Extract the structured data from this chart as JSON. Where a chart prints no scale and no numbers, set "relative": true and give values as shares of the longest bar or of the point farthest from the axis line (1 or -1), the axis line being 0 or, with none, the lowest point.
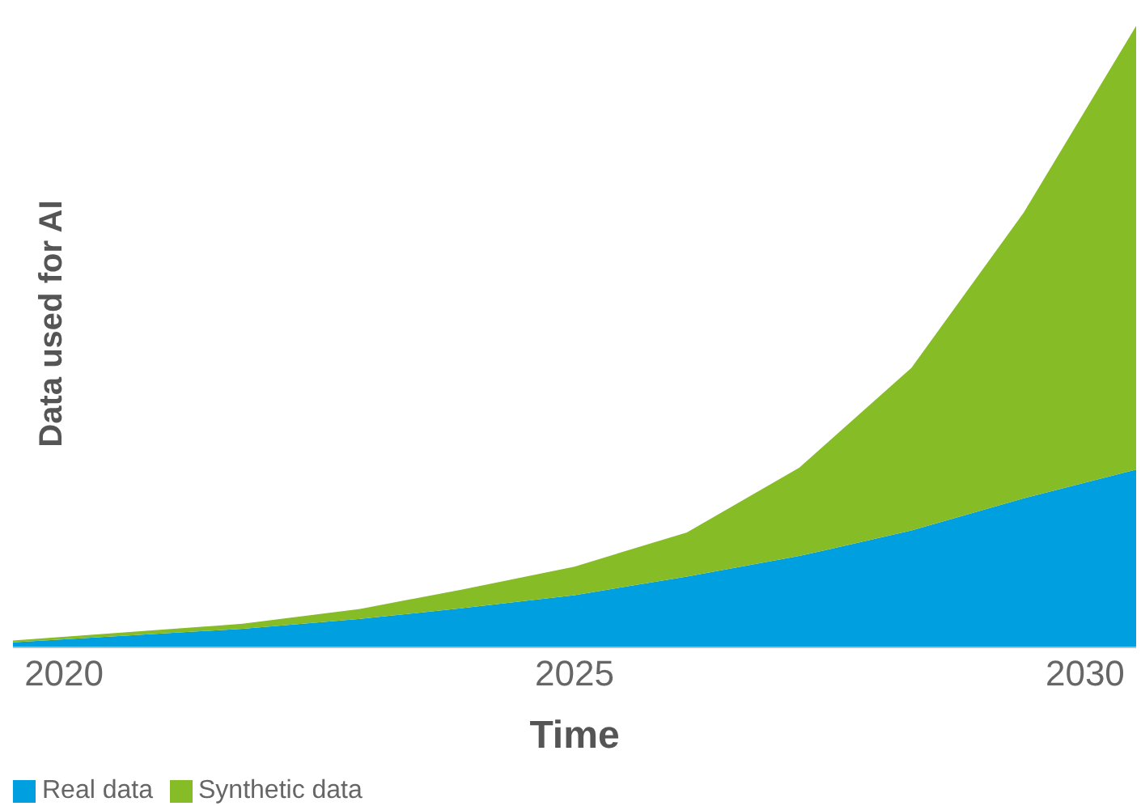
{
  "chart_data": {
    "type": "area",
    "stacked": true,
    "relative": true,
    "xlabel": "Time",
    "ylabel": "Data used for AI",
    "x": [
      2019.5,
      2021.75,
      2022.9,
      2023.9,
      2025,
      2026.1,
      2027.2,
      2028.3,
      2029.4,
      2030.5
    ],
    "xlim": [
      2019.5,
      2030.5
    ],
    "xticks": [
      2020,
      2025,
      2030
    ],
    "series": [
      {
        "name": "Real data",
        "color": "#00a0e0",
        "values": [
          0.008,
          0.03,
          0.046,
          0.063,
          0.084,
          0.114,
          0.147,
          0.188,
          0.24,
          0.286
        ]
      },
      {
        "name": "Synthetic data",
        "color": "#86bc25",
        "values": [
          0.003,
          0.008,
          0.016,
          0.03,
          0.046,
          0.071,
          0.142,
          0.262,
          0.46,
          0.714
        ]
      }
    ],
    "grid": false,
    "legend": "bottom left"
  }
}
